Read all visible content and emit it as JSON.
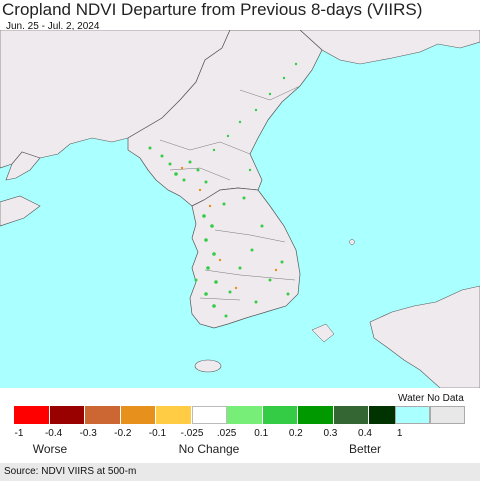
{
  "title": "Cropland NDVI Departure from Previous 8-days (VIIRS)",
  "subtitle": "Jun. 25 - Jul. 2, 2024",
  "legend": {
    "ticks": [
      "-1",
      "-0.4",
      "-0.3",
      "-0.2",
      "-0.1",
      "-.025",
      ".025",
      "0.1",
      "0.2",
      "0.3",
      "0.4",
      "1"
    ],
    "colors": [
      "#ff0000",
      "#990000",
      "#cc6633",
      "#e8901c",
      "#ffcc44",
      "#ffffff",
      "#77ee77",
      "#33cc44",
      "#009900",
      "#336633",
      "#003300"
    ],
    "water_color": "#aaffff",
    "nodata_color": "#e8e8e8",
    "water_nodata_label": "Water No Data",
    "categories": [
      "Worse",
      "No Change",
      "Better"
    ]
  },
  "map": {
    "sea_color": "#aaffff",
    "land_color": "#efeaee",
    "cropland_color": "#33cc44"
  },
  "source": "Source: NDVI VIIRS at 500-m"
}
